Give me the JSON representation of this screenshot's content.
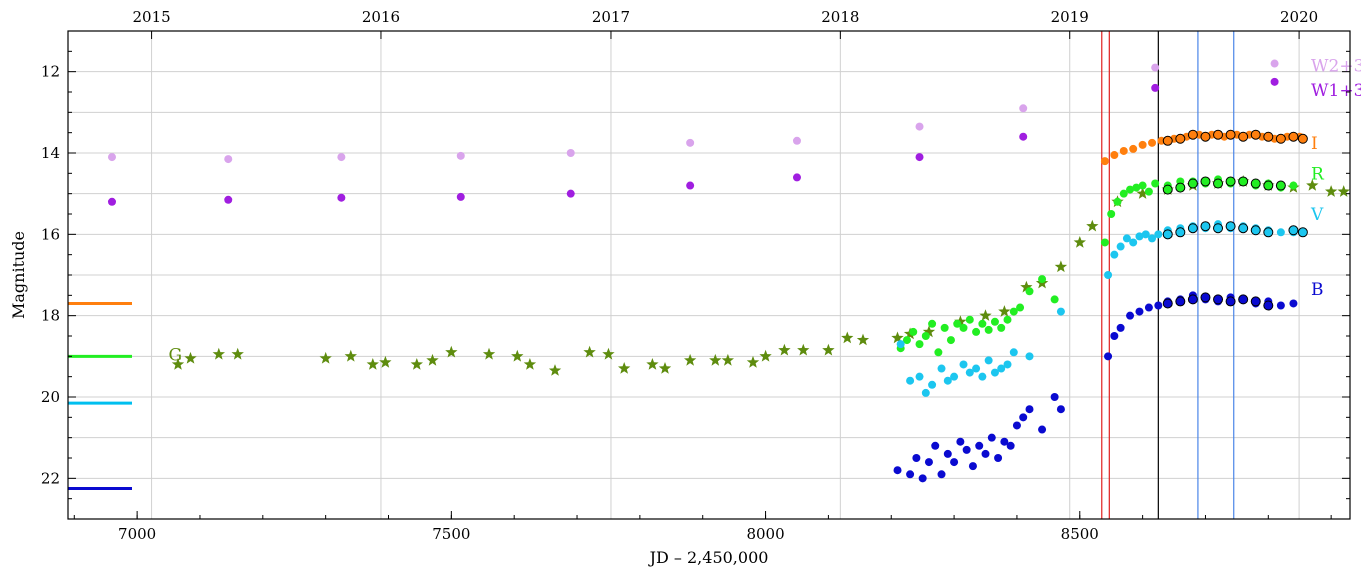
{
  "chart_data": {
    "type": "scatter",
    "xlabel": "JD – 2,450,000",
    "ylabel": "Magnitude",
    "xlim": [
      6890,
      8930
    ],
    "ylim": [
      23,
      11
    ],
    "y_inverted": true,
    "grid": true,
    "x_ticks": [
      7000,
      7500,
      8000,
      8500
    ],
    "y_ticks": [
      12,
      14,
      16,
      18,
      20,
      22
    ],
    "top_axis": {
      "ticks": [
        {
          "x": 7023,
          "label": "2015"
        },
        {
          "x": 7388,
          "label": "2016"
        },
        {
          "x": 7754,
          "label": "2017"
        },
        {
          "x": 8119,
          "label": "2018"
        },
        {
          "x": 8484,
          "label": "2019"
        },
        {
          "x": 8849,
          "label": "2020"
        }
      ]
    },
    "vertical_lines": [
      {
        "x": 8535,
        "color": "#e0201e"
      },
      {
        "x": 8547,
        "color": "#e0201e"
      },
      {
        "x": 8625,
        "color": "#000000"
      },
      {
        "x": 8688,
        "color": "#4a86e8"
      },
      {
        "x": 8745,
        "color": "#4a86e8"
      }
    ],
    "reference_levels": [
      {
        "y": 17.7,
        "color": "#ff7f0e"
      },
      {
        "y": 19.0,
        "color": "#22ee22"
      },
      {
        "y": 20.15,
        "color": "#00bfef"
      },
      {
        "y": 22.25,
        "color": "#0a0ad0"
      }
    ],
    "colors": {
      "W2+3": "#d9a4ec",
      "W1+3": "#a01ee0",
      "I": "#ff7f0e",
      "R": "#22ee22",
      "V": "#1cc6ef",
      "B": "#0a0ad0",
      "G": "#5e8c0e"
    },
    "series": [
      {
        "name": "W2+3",
        "marker": "circle",
        "x": [
          6960,
          7145,
          7325,
          7515,
          7690,
          7880,
          8050,
          8245,
          8410,
          8620
        ],
        "y": [
          14.1,
          14.15,
          14.1,
          14.07,
          14.0,
          13.75,
          13.7,
          13.35,
          12.9,
          11.9
        ]
      },
      {
        "name": "W1+3",
        "marker": "circle",
        "x": [
          6960,
          7145,
          7325,
          7515,
          7690,
          7880,
          8050,
          8245,
          8410,
          8620
        ],
        "y": [
          15.2,
          15.15,
          15.1,
          15.08,
          15.0,
          14.8,
          14.6,
          14.1,
          13.6,
          12.4
        ]
      },
      {
        "name": "G",
        "marker": "star",
        "x": [
          7065,
          7085,
          7130,
          7160,
          7300,
          7340,
          7375,
          7395,
          7445,
          7470,
          7500,
          7560,
          7605,
          7625,
          7665,
          7720,
          7750,
          7775,
          7820,
          7840,
          7880,
          7920,
          7940,
          7980,
          8000,
          8030,
          8060,
          8100,
          8130,
          8155,
          8210,
          8230,
          8260,
          8310,
          8350,
          8380,
          8415,
          8440,
          8470,
          8500,
          8520,
          8560,
          8600,
          8640,
          8680,
          8720,
          8760,
          8800,
          8840,
          8870,
          8900,
          8920
        ],
        "y": [
          19.2,
          19.05,
          18.95,
          18.95,
          19.05,
          19.0,
          19.2,
          19.15,
          19.2,
          19.1,
          18.9,
          18.95,
          19.0,
          19.2,
          19.35,
          18.9,
          18.95,
          19.3,
          19.2,
          19.3,
          19.1,
          19.1,
          19.1,
          19.15,
          19.0,
          18.85,
          18.85,
          18.85,
          18.55,
          18.6,
          18.55,
          18.45,
          18.4,
          18.15,
          18.0,
          17.9,
          17.3,
          17.2,
          16.8,
          16.2,
          15.8,
          15.2,
          15.0,
          14.9,
          14.8,
          14.75,
          14.7,
          14.8,
          14.85,
          14.8,
          14.95,
          14.95
        ]
      },
      {
        "name": "R",
        "marker": "circle",
        "x": [
          8215,
          8225,
          8235,
          8245,
          8255,
          8265,
          8275,
          8285,
          8295,
          8305,
          8315,
          8325,
          8335,
          8345,
          8355,
          8365,
          8375,
          8385,
          8395,
          8405,
          8420,
          8440,
          8460,
          8540,
          8550,
          8560,
          8570,
          8580,
          8590,
          8600,
          8610,
          8620,
          8640,
          8660,
          8680,
          8700,
          8720,
          8740,
          8760,
          8780,
          8800,
          8820,
          8840
        ],
        "y": [
          18.8,
          18.6,
          18.4,
          18.7,
          18.5,
          18.2,
          18.9,
          18.3,
          18.6,
          18.2,
          18.3,
          18.1,
          18.4,
          18.2,
          18.35,
          18.15,
          18.3,
          18.1,
          17.9,
          17.8,
          17.4,
          17.1,
          17.6,
          16.2,
          15.5,
          15.2,
          15.0,
          14.9,
          14.85,
          14.8,
          14.95,
          14.75,
          14.8,
          14.7,
          14.7,
          14.75,
          14.65,
          14.75,
          14.7,
          14.8,
          14.75,
          14.85,
          14.8
        ]
      },
      {
        "name": "V",
        "marker": "circle",
        "x": [
          8215,
          8230,
          8245,
          8255,
          8265,
          8280,
          8290,
          8300,
          8315,
          8325,
          8335,
          8345,
          8355,
          8365,
          8375,
          8385,
          8395,
          8420,
          8470,
          8545,
          8555,
          8565,
          8575,
          8585,
          8595,
          8605,
          8615,
          8625,
          8640,
          8660,
          8680,
          8700,
          8720,
          8740,
          8760,
          8780,
          8800,
          8820,
          8840
        ],
        "y": [
          18.7,
          19.6,
          19.5,
          19.9,
          19.7,
          19.3,
          19.6,
          19.5,
          19.2,
          19.4,
          19.3,
          19.5,
          19.1,
          19.4,
          19.3,
          19.2,
          18.9,
          19.0,
          17.9,
          17.0,
          16.5,
          16.3,
          16.1,
          16.2,
          16.05,
          16.0,
          16.1,
          16.0,
          15.9,
          15.85,
          15.8,
          15.85,
          15.75,
          15.85,
          15.8,
          15.85,
          15.9,
          15.95,
          15.95
        ]
      },
      {
        "name": "B",
        "marker": "circle",
        "x": [
          8210,
          8230,
          8240,
          8250,
          8260,
          8270,
          8280,
          8290,
          8300,
          8310,
          8320,
          8330,
          8340,
          8350,
          8360,
          8370,
          8380,
          8390,
          8400,
          8410,
          8420,
          8440,
          8460,
          8470,
          8545,
          8555,
          8565,
          8580,
          8595,
          8610,
          8625,
          8640,
          8660,
          8680,
          8700,
          8720,
          8740,
          8760,
          8780,
          8800,
          8820,
          8840
        ],
        "y": [
          21.8,
          21.9,
          21.5,
          22.0,
          21.6,
          21.2,
          21.9,
          21.4,
          21.6,
          21.1,
          21.3,
          21.7,
          21.2,
          21.4,
          21.0,
          21.5,
          21.1,
          21.2,
          20.7,
          20.5,
          20.3,
          20.8,
          20.0,
          20.3,
          19.0,
          18.5,
          18.3,
          18.0,
          17.9,
          17.8,
          17.75,
          17.65,
          17.6,
          17.5,
          17.6,
          17.65,
          17.55,
          17.6,
          17.7,
          17.65,
          17.75,
          17.7
        ]
      },
      {
        "name": "I",
        "marker": "circle",
        "x": [
          8540,
          8555,
          8570,
          8585,
          8600,
          8615,
          8630,
          8650,
          8670,
          8690,
          8710,
          8730,
          8750,
          8770,
          8790,
          8810,
          8830,
          8850
        ],
        "y": [
          14.2,
          14.05,
          13.95,
          13.9,
          13.8,
          13.75,
          13.7,
          13.65,
          13.6,
          13.55,
          13.55,
          13.6,
          13.55,
          13.55,
          13.6,
          13.65,
          13.6,
          13.6
        ]
      }
    ],
    "open_circles": [
      {
        "series": "I",
        "x": [
          8640,
          8660,
          8680,
          8700,
          8720,
          8740,
          8760,
          8780,
          8800,
          8820,
          8840,
          8855
        ],
        "y": [
          13.7,
          13.65,
          13.55,
          13.6,
          13.55,
          13.55,
          13.6,
          13.55,
          13.6,
          13.65,
          13.6,
          13.65
        ]
      },
      {
        "series": "R",
        "x": [
          8640,
          8660,
          8680,
          8700,
          8720,
          8740,
          8760,
          8780,
          8800,
          8820
        ],
        "y": [
          14.9,
          14.85,
          14.75,
          14.7,
          14.75,
          14.7,
          14.7,
          14.75,
          14.8,
          14.8
        ]
      },
      {
        "series": "V",
        "x": [
          8640,
          8660,
          8680,
          8700,
          8720,
          8740,
          8760,
          8780,
          8800,
          8840,
          8855
        ],
        "y": [
          16.0,
          15.95,
          15.85,
          15.8,
          15.85,
          15.8,
          15.85,
          15.9,
          15.95,
          15.9,
          15.95
        ]
      },
      {
        "series": "B",
        "x": [
          8640,
          8660,
          8680,
          8700,
          8720,
          8740,
          8760,
          8780,
          8800
        ],
        "y": [
          17.7,
          17.65,
          17.6,
          17.55,
          17.6,
          17.65,
          17.6,
          17.65,
          17.75
        ]
      }
    ],
    "series_labels": [
      {
        "text": "W2+3",
        "series": "W2+3",
        "x": 8868,
        "y": 11.85
      },
      {
        "text": "W1+3",
        "series": "W1+3",
        "x": 8868,
        "y": 12.45
      },
      {
        "text": "I",
        "series": "I",
        "x": 8868,
        "y": 13.75
      },
      {
        "text": "R",
        "series": "R",
        "x": 8868,
        "y": 14.5
      },
      {
        "text": "V",
        "series": "V",
        "x": 8868,
        "y": 15.5
      },
      {
        "text": "B",
        "series": "B",
        "x": 8868,
        "y": 17.35
      },
      {
        "text": "G",
        "series": "G",
        "x": 7050,
        "y": 18.95
      }
    ],
    "legend_markers": [
      {
        "series": "W2+3",
        "x": 8810,
        "y": 11.8
      },
      {
        "series": "W1+3",
        "x": 8810,
        "y": 12.25
      }
    ]
  }
}
